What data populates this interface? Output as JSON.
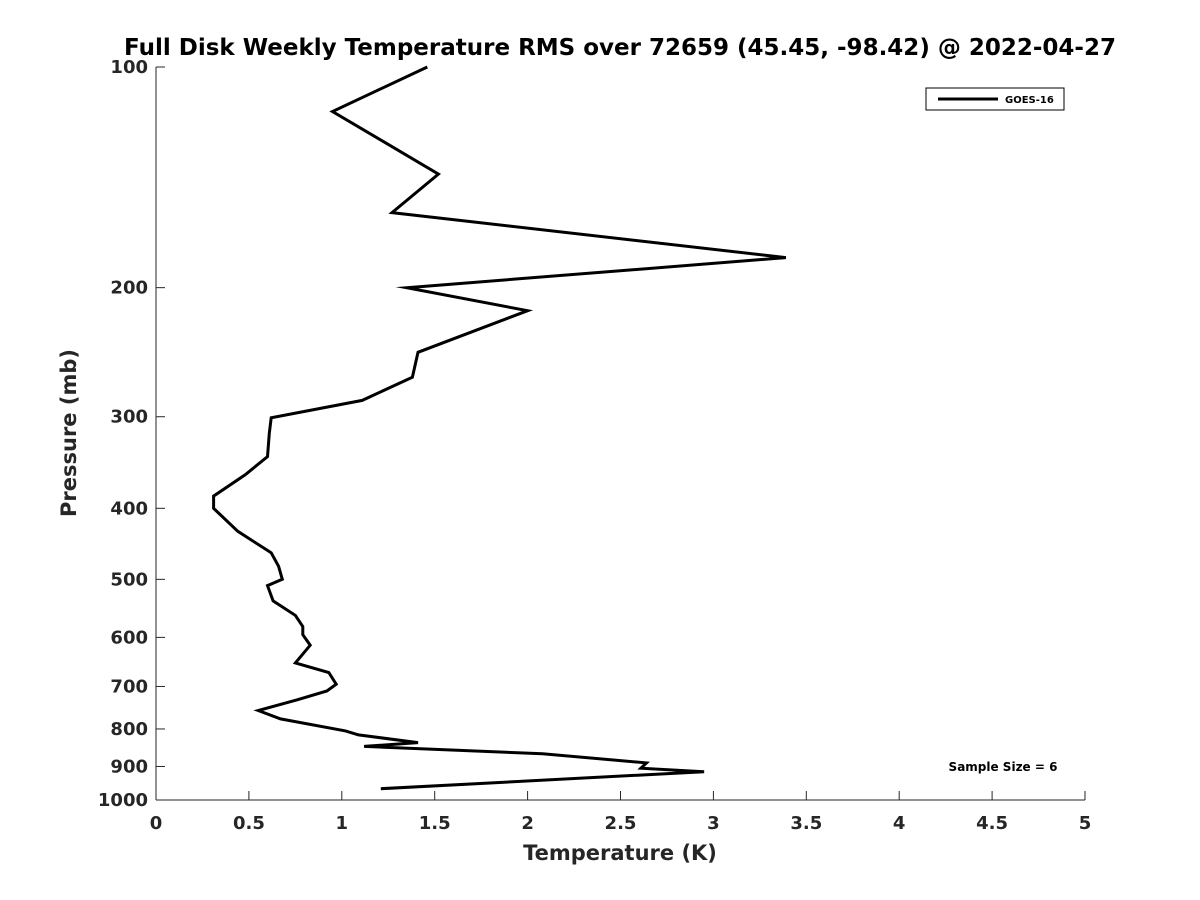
{
  "chart_data": {
    "type": "line",
    "title": "Full Disk Weekly Temperature RMS over 72659 (45.45, -98.42) @ 2022-04-27",
    "xlabel": "Temperature (K)",
    "ylabel": "Pressure (mb)",
    "xlim": [
      0,
      5
    ],
    "ylim": [
      100,
      1000
    ],
    "y_scale": "log",
    "y_reversed": true,
    "x_ticks": [
      0,
      0.5,
      1,
      1.5,
      2,
      2.5,
      3,
      3.5,
      4,
      4.5,
      5
    ],
    "x_tick_labels": [
      "0",
      "0.5",
      "1",
      "1.5",
      "2",
      "2.5",
      "3",
      "3.5",
      "4",
      "4.5",
      "5"
    ],
    "y_ticks": [
      100,
      200,
      300,
      400,
      500,
      600,
      700,
      800,
      900,
      1000
    ],
    "y_tick_labels": [
      "100",
      "200",
      "300",
      "400",
      "500",
      "600",
      "700",
      "800",
      "900",
      "1000"
    ],
    "grid": false,
    "legend_position": "top-right",
    "annotation": "Sample Size = 6",
    "line_color": "#000000",
    "series": [
      {
        "name": "GOES-16",
        "x": [
          1.46,
          0.95,
          1.52,
          1.27,
          3.39,
          1.35,
          2.0,
          1.41,
          1.38,
          1.11,
          0.62,
          0.61,
          0.6,
          0.48,
          0.31,
          0.31,
          0.44,
          0.62,
          0.66,
          0.68,
          0.6,
          0.63,
          0.75,
          0.79,
          0.79,
          0.83,
          0.75,
          0.93,
          0.97,
          0.92,
          0.76,
          0.55,
          0.67,
          1.02,
          1.09,
          1.41,
          1.12,
          2.08,
          2.64,
          2.61,
          2.95,
          1.21
        ],
        "y": [
          100,
          115,
          140,
          158,
          182,
          200,
          215,
          245,
          265,
          285,
          301,
          316,
          340,
          360,
          385,
          400,
          430,
          460,
          480,
          500,
          510,
          535,
          560,
          580,
          595,
          615,
          650,
          670,
          695,
          710,
          730,
          755,
          775,
          805,
          815,
          835,
          845,
          865,
          890,
          905,
          915,
          965
        ]
      }
    ]
  }
}
